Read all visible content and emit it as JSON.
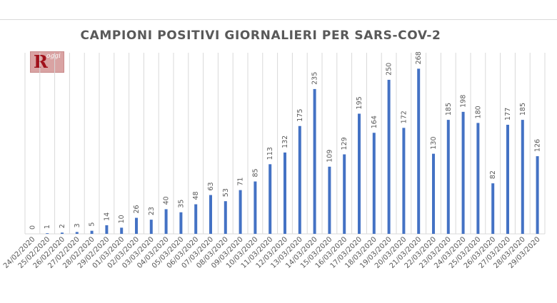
{
  "page": {
    "logo_text": "R",
    "logo_subtext": "oggi"
  },
  "chart_data": {
    "type": "bar",
    "title": "CAMPIONI POSITIVI GIORNALIERI PER SARS-COV-2",
    "xlabel": "",
    "ylabel": "",
    "ylim": [
      0,
      280
    ],
    "grid": "vertical category lines",
    "legend": "none",
    "bar_color": "#4472c4",
    "categories": [
      "24/02/2020",
      "25/02/2020",
      "26/02/2020",
      "27/02/2020",
      "28/02/2020",
      "29/02/2020",
      "01/03/2020",
      "02/03/2020",
      "03/03/2020",
      "04/03/2020",
      "05/03/2020",
      "06/03/2020",
      "07/03/2020",
      "08/03/2020",
      "09/03/2020",
      "10/03/2020",
      "11/03/2020",
      "12/03/2020",
      "13/03/2020",
      "14/03/2020",
      "15/03/2020",
      "16/03/2020",
      "17/03/2020",
      "18/03/2020",
      "19/03/2020",
      "20/03/2020",
      "21/03/2020",
      "22/03/2020",
      "23/03/2020",
      "24/03/2020",
      "25/03/2020",
      "26/03/2020",
      "27/03/2020",
      "28/03/2020",
      "29/03/2020"
    ],
    "values": [
      0,
      1,
      2,
      3,
      5,
      14,
      10,
      26,
      23,
      40,
      35,
      48,
      63,
      53,
      71,
      85,
      113,
      132,
      175,
      235,
      109,
      129,
      195,
      164,
      250,
      172,
      268,
      130,
      185,
      198,
      180,
      82,
      177,
      185,
      126
    ]
  }
}
